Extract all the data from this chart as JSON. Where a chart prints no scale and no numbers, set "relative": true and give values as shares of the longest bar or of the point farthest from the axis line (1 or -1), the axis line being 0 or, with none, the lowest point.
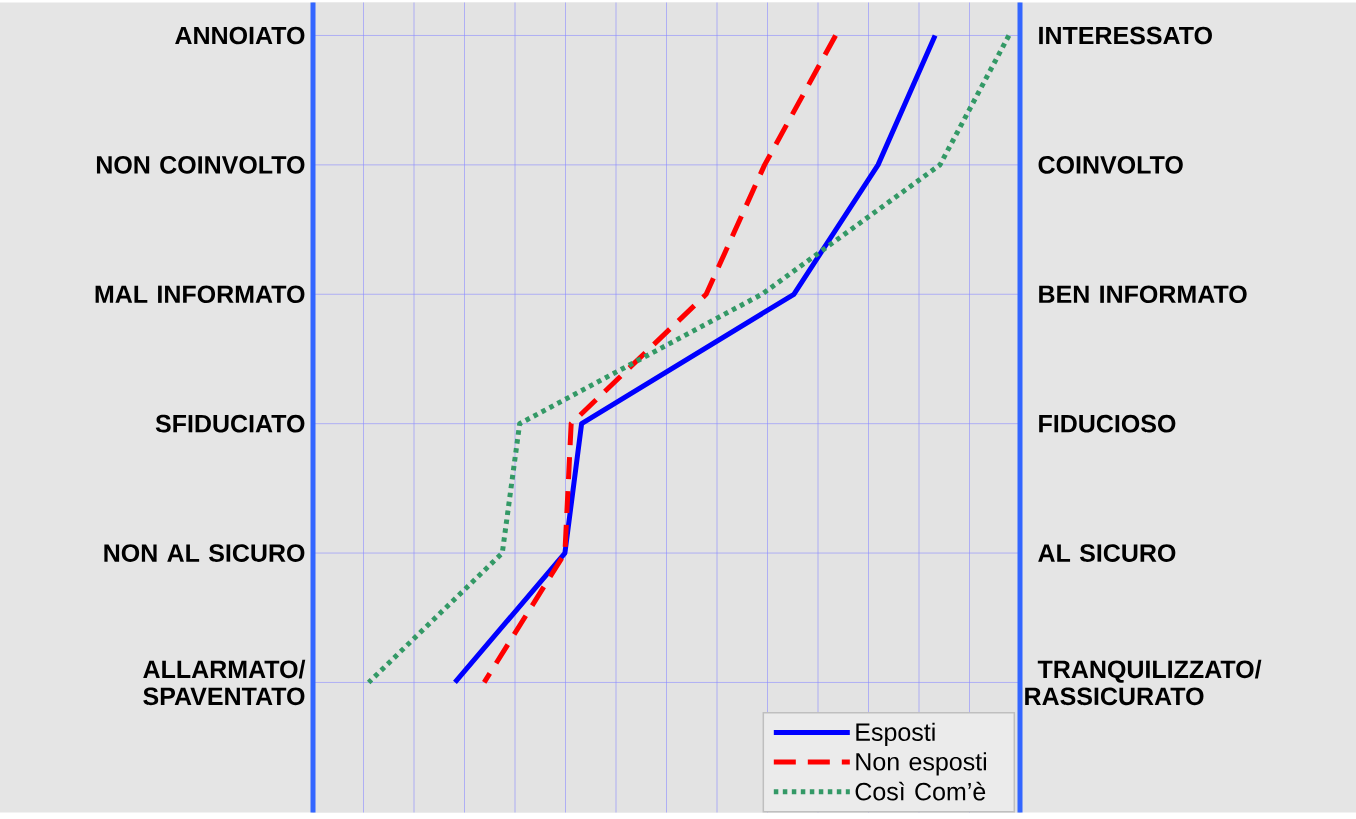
{
  "chart_data": {
    "type": "line",
    "orientation": "horizontal",
    "relative": true,
    "categories": [
      "ANNOIATO",
      "NON COINVOLTO",
      "MAL INFORMATO",
      "SFIDUCIATO",
      "NON AL SICURO",
      "ALLARMATO/ SPAVENTATO"
    ],
    "y2_categories": [
      "INTERESSATO",
      "COINVOLTO",
      "BEN INFORMATO",
      "FIDUCIOSO",
      "AL SICURO",
      "TRANQUILIZZATO/ RASSICURATO"
    ],
    "series": [
      {
        "name": "Esposti",
        "color": "#0000ff",
        "line_style": "solid",
        "values": [
          0.894,
          0.812,
          0.691,
          0.386,
          0.362,
          0.204
        ]
      },
      {
        "name": "Non esposti",
        "color": "#ff0000",
        "line_style": "dashed",
        "values": [
          0.751,
          0.649,
          0.565,
          0.371,
          0.362,
          0.246
        ]
      },
      {
        "name": "Così Com’è",
        "color": "#339966",
        "line_style": "dotted",
        "values": [
          1.0,
          0.901,
          0.645,
          0.297,
          0.272,
          0.08
        ]
      }
    ],
    "grid": true,
    "legend": "bottom right"
  }
}
